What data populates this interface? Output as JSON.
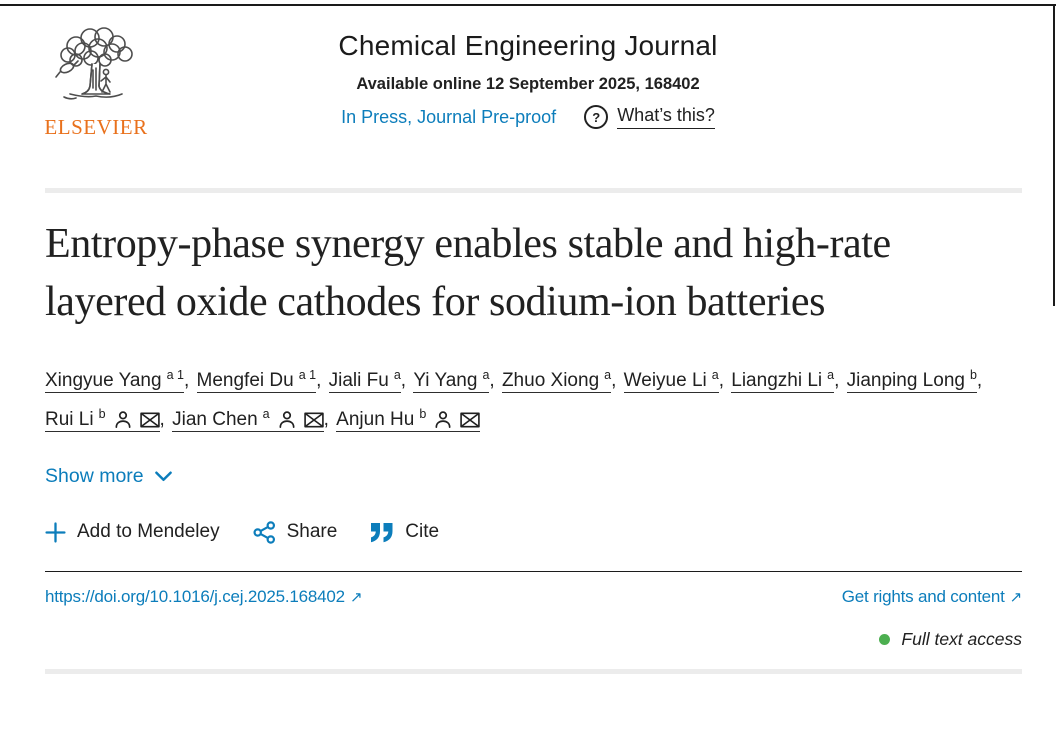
{
  "header": {
    "logo_wordmark": "ELSEVIER",
    "journal_title": "Chemical Engineering Journal",
    "availability": "Available online 12 September 2025, 168402",
    "status_link": "In Press, Journal Pre-proof",
    "help_glyph": "?",
    "whats_this": "What’s this?"
  },
  "article": {
    "title": "Entropy-phase synergy enables stable and high-rate layered oxide cathodes for sodium-ion batteries",
    "authors": [
      {
        "name": "Xingyue Yang",
        "sup": "a 1",
        "person": false,
        "mail": false
      },
      {
        "name": "Mengfei Du",
        "sup": "a 1",
        "person": false,
        "mail": false
      },
      {
        "name": "Jiali Fu",
        "sup": "a",
        "person": false,
        "mail": false
      },
      {
        "name": "Yi Yang",
        "sup": "a",
        "person": false,
        "mail": false
      },
      {
        "name": "Zhuo Xiong",
        "sup": "a",
        "person": false,
        "mail": false
      },
      {
        "name": "Weiyue Li",
        "sup": "a",
        "person": false,
        "mail": false
      },
      {
        "name": "Liangzhi Li",
        "sup": "a",
        "person": false,
        "mail": false
      },
      {
        "name": "Jianping Long",
        "sup": "b",
        "person": false,
        "mail": false
      },
      {
        "name": "Rui Li",
        "sup": "b",
        "person": true,
        "mail": true
      },
      {
        "name": "Jian Chen",
        "sup": "a",
        "person": true,
        "mail": true
      },
      {
        "name": "Anjun Hu",
        "sup": "b",
        "person": true,
        "mail": true
      }
    ],
    "show_more": "Show more"
  },
  "actions": {
    "add_to_mendeley": "Add to Mendeley",
    "share": "Share",
    "cite": "Cite"
  },
  "links": {
    "doi": "https://doi.org/10.1016/j.cej.2025.168402",
    "rights": "Get rights and content"
  },
  "access": {
    "label": "Full text access"
  },
  "icons": {
    "external_link": "↗"
  },
  "colors": {
    "link_blue": "#0c7dbb",
    "elsevier_orange": "#e9711c",
    "access_green": "#4caf50",
    "text": "#212121"
  }
}
